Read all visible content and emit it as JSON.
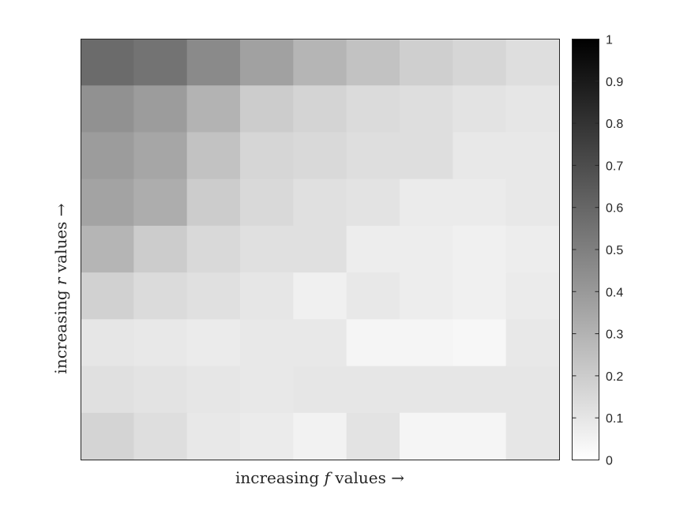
{
  "chart_data": {
    "type": "heatmap",
    "colormap": "gray-reversed",
    "xlabel": {
      "prefix": "increasing ",
      "var": "f",
      "suffix": " values →"
    },
    "ylabel": {
      "prefix": "increasing ",
      "var": "r",
      "suffix": " values →"
    },
    "colorbar": {
      "range": [
        0,
        1
      ],
      "ticks": [
        "0",
        "0.1",
        "0.2",
        "0.3",
        "0.4",
        "0.5",
        "0.6",
        "0.7",
        "0.8",
        "0.9",
        "1"
      ]
    },
    "values": [
      [
        0.58,
        0.55,
        0.46,
        0.37,
        0.29,
        0.24,
        0.19,
        0.16,
        0.13
      ],
      [
        0.43,
        0.39,
        0.3,
        0.2,
        0.17,
        0.14,
        0.13,
        0.11,
        0.1
      ],
      [
        0.39,
        0.35,
        0.24,
        0.16,
        0.15,
        0.13,
        0.13,
        0.09,
        0.09
      ],
      [
        0.36,
        0.32,
        0.2,
        0.15,
        0.12,
        0.11,
        0.08,
        0.08,
        0.09
      ],
      [
        0.29,
        0.2,
        0.15,
        0.12,
        0.12,
        0.07,
        0.07,
        0.06,
        0.07
      ],
      [
        0.18,
        0.14,
        0.12,
        0.1,
        0.06,
        0.09,
        0.07,
        0.06,
        0.08
      ],
      [
        0.1,
        0.09,
        0.08,
        0.09,
        0.09,
        0.04,
        0.04,
        0.03,
        0.09
      ],
      [
        0.12,
        0.11,
        0.1,
        0.09,
        0.1,
        0.1,
        0.1,
        0.1,
        0.1
      ],
      [
        0.17,
        0.13,
        0.09,
        0.08,
        0.05,
        0.11,
        0.04,
        0.04,
        0.1
      ]
    ]
  }
}
